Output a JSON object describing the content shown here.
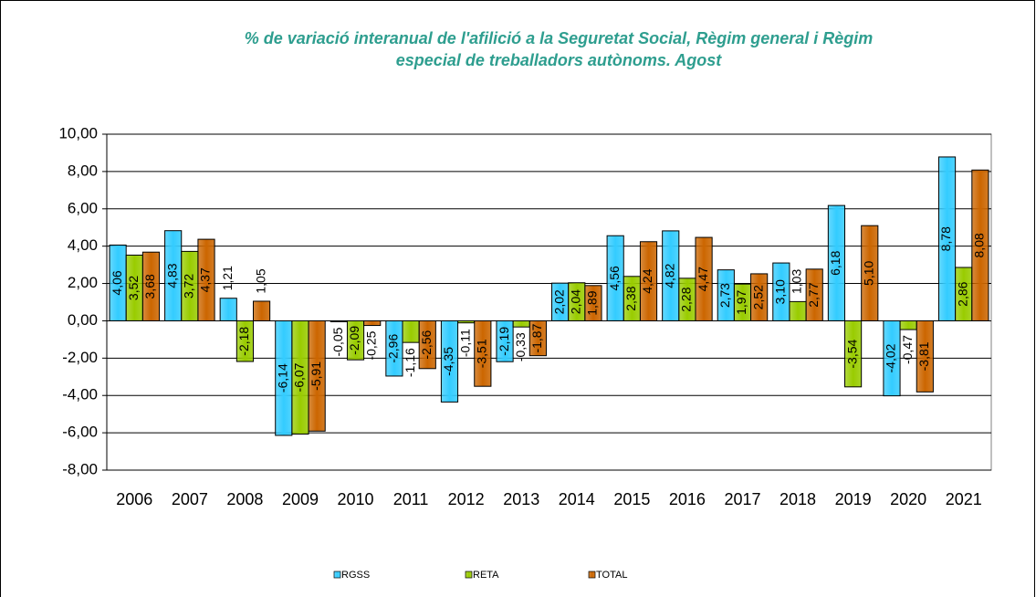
{
  "chart_data": {
    "type": "bar",
    "title": [
      "% de variació interanual de l'afilició a la Seguretat Social, Règim general i Règim",
      "especial de treballadors autònoms. Agost"
    ],
    "categories": [
      "2006",
      "2007",
      "2008",
      "2009",
      "2010",
      "2011",
      "2012",
      "2013",
      "2014",
      "2015",
      "2016",
      "2017",
      "2018",
      "2019",
      "2020",
      "2021"
    ],
    "series": [
      {
        "name": "RGSS",
        "color": "#33ccff",
        "values": [
          4.06,
          4.83,
          1.21,
          -6.14,
          -0.05,
          -2.96,
          -4.35,
          -2.19,
          2.02,
          4.56,
          4.82,
          2.73,
          3.1,
          6.18,
          -4.02,
          8.78
        ],
        "value_labels": [
          "4,06",
          "4,83",
          "1,21",
          "-6,14",
          "-0,05",
          "-2,96",
          "-4,35",
          "-2,19",
          "2,02",
          "4,56",
          "4,82",
          "2,73",
          "3,10",
          "6,18",
          "-4,02",
          "8,78"
        ]
      },
      {
        "name": "RETA",
        "color": "#99cc00",
        "values": [
          3.52,
          3.72,
          -2.18,
          -6.07,
          -2.09,
          -1.16,
          -0.11,
          -0.33,
          2.04,
          2.38,
          2.28,
          1.97,
          1.03,
          -3.54,
          -0.47,
          2.86
        ],
        "value_labels": [
          "3,52",
          "3,72",
          "-2,18",
          "-6,07",
          "-2,09",
          "-1,16",
          "-0,11",
          "-0,33",
          "2,04",
          "2,38",
          "2,28",
          "1,97",
          "1,03",
          "-3,54",
          "-0,47",
          "2,86"
        ]
      },
      {
        "name": "TOTAL",
        "color": "#cc6600",
        "values": [
          3.68,
          4.37,
          1.05,
          -5.91,
          -0.25,
          -2.56,
          -3.51,
          -1.87,
          1.89,
          4.24,
          4.47,
          2.52,
          2.77,
          5.1,
          -3.81,
          8.08
        ],
        "value_labels": [
          "3,68",
          "4,37",
          "1,05",
          "-5,91",
          "-0,25",
          "-2,56",
          "-3,51",
          "-1,87",
          "1,89",
          "4,24",
          "4,47",
          "2,52",
          "2,77",
          "5,10",
          "-3,81",
          "8,08"
        ]
      }
    ],
    "ylim": [
      -8,
      10
    ],
    "yticks": [
      {
        "value": -8,
        "label": "-8,00"
      },
      {
        "value": -6,
        "label": "-6,00"
      },
      {
        "value": -4,
        "label": "-4,00"
      },
      {
        "value": -2,
        "label": "-2,00"
      },
      {
        "value": 0,
        "label": "0,00"
      },
      {
        "value": 2,
        "label": "2,00"
      },
      {
        "value": 4,
        "label": "4,00"
      },
      {
        "value": 6,
        "label": "6,00"
      },
      {
        "value": 8,
        "label": "8,00"
      },
      {
        "value": 10,
        "label": "10,00"
      }
    ],
    "grid": true,
    "legend": "bottom"
  }
}
